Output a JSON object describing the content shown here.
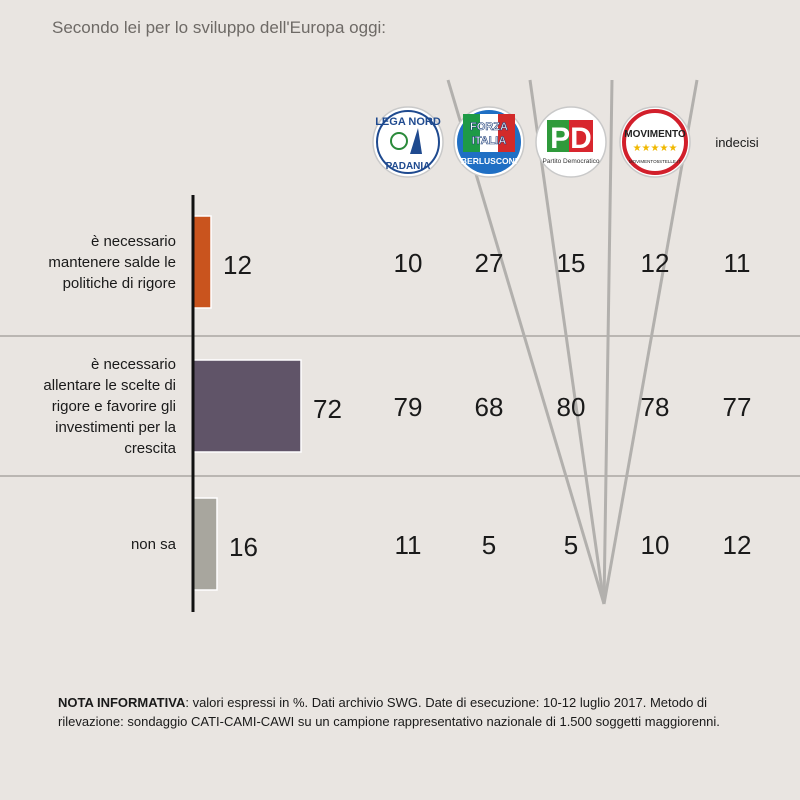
{
  "title": "Secondo lei per lo sviluppo dell'Europa oggi:",
  "chart_data": {
    "type": "bar",
    "orientation": "horizontal",
    "categories": [
      [
        "è necessario",
        "mantenere salde le",
        "politiche di rigore"
      ],
      [
        "è necessario",
        "allentare le scelte di",
        "rigore e favorire gli",
        "investimenti per la",
        "crescita"
      ],
      [
        "non sa"
      ]
    ],
    "values": [
      12,
      72,
      16
    ],
    "colors": [
      "#c9541e",
      "#605468",
      "#a8a69e"
    ],
    "columns": [
      {
        "key": "lega",
        "logo": "lega-nord-logo",
        "logo_text": [
          "LEGA NORD",
          "PADANIA"
        ],
        "values": [
          10,
          79,
          11
        ]
      },
      {
        "key": "forza",
        "logo": "forza-italia-logo",
        "logo_text": [
          "FORZA",
          "ITALIA",
          "BERLUSCONI"
        ],
        "values": [
          27,
          68,
          5
        ]
      },
      {
        "key": "pd",
        "logo": "pd-logo",
        "logo_text": [
          "PD",
          "Partito Democratico"
        ],
        "values": [
          15,
          80,
          5
        ]
      },
      {
        "key": "m5s",
        "logo": "movimento-5-stelle-logo",
        "logo_text": [
          "MOVIMENTO",
          "★★★★★",
          "MOVIMENTO5STELLE.IT"
        ],
        "values": [
          12,
          78,
          10
        ]
      },
      {
        "key": "indecisi",
        "label": "indecisi",
        "values": [
          11,
          77,
          12
        ]
      }
    ]
  },
  "nota": {
    "label": "NOTA INFORMATIVA",
    "text": ": valori espressi in %. Dati archivio SWG. Date di esecuzione: 10-12 luglio 2017. Metodo di rilevazione: sondaggio CATI-CAMI-CAWI su un campione rappresentativo nazionale di 1.500 soggetti maggiorenni."
  }
}
